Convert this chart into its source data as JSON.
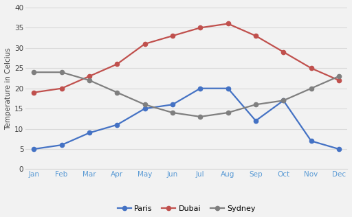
{
  "months": [
    "Jan",
    "Feb",
    "Mar",
    "Apr",
    "May",
    "Jun",
    "Jul",
    "Aug",
    "Sep",
    "Oct",
    "Nov",
    "Dec"
  ],
  "paris": [
    5,
    6,
    9,
    11,
    15,
    16,
    20,
    20,
    12,
    17,
    7,
    5
  ],
  "dubai": [
    19,
    20,
    23,
    26,
    31,
    33,
    35,
    36,
    33,
    29,
    25,
    22
  ],
  "sydney": [
    24,
    24,
    22,
    19,
    16,
    14,
    13,
    14,
    16,
    17,
    20,
    23
  ],
  "paris_color": "#4472c4",
  "dubai_color": "#c0504d",
  "sydney_color": "#7f7f7f",
  "ylabel": "Temperature in Celcius",
  "ylim": [
    0,
    40
  ],
  "yticks": [
    0,
    5,
    10,
    15,
    20,
    25,
    30,
    35,
    40
  ],
  "grid_color": "#d9d9d9",
  "bg_color": "#f2f2f2",
  "tick_color": "#5b9bd5",
  "marker": "o",
  "linewidth": 1.6,
  "markersize": 4.5,
  "legend_labels": [
    "Paris",
    "Dubai",
    "Sydney"
  ]
}
